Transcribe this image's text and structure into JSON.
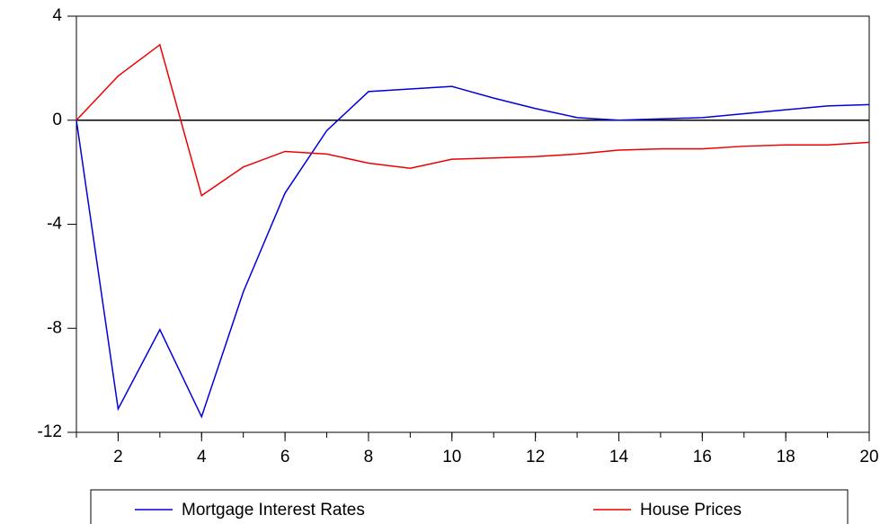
{
  "chart_data": {
    "type": "line",
    "x": [
      1,
      2,
      3,
      4,
      5,
      6,
      7,
      8,
      9,
      10,
      11,
      12,
      13,
      14,
      15,
      16,
      17,
      18,
      19,
      20
    ],
    "series": [
      {
        "name": "Mortgage Interest Rates",
        "color": "#0000dd",
        "values": [
          0,
          -11.1,
          -8.05,
          -11.4,
          -6.6,
          -2.8,
          -0.4,
          1.1,
          1.2,
          1.3,
          0.85,
          0.45,
          0.1,
          0,
          0.05,
          0.1,
          0.25,
          0.4,
          0.55,
          0.6
        ]
      },
      {
        "name": "House Prices",
        "color": "#ee0000",
        "values": [
          0,
          1.7,
          2.9,
          -2.9,
          -1.8,
          -1.2,
          -1.3,
          -1.65,
          -1.85,
          -1.5,
          -1.45,
          -1.4,
          -1.3,
          -1.15,
          -1.1,
          -1.1,
          -1.0,
          -0.95,
          -0.95,
          -0.85
        ]
      }
    ],
    "xlim": [
      1,
      20
    ],
    "xticks": [
      2,
      4,
      6,
      8,
      10,
      12,
      14,
      16,
      18,
      20
    ],
    "ylim": [
      -12,
      4
    ],
    "yticks": [
      -12,
      -8,
      -4,
      0,
      4
    ]
  }
}
